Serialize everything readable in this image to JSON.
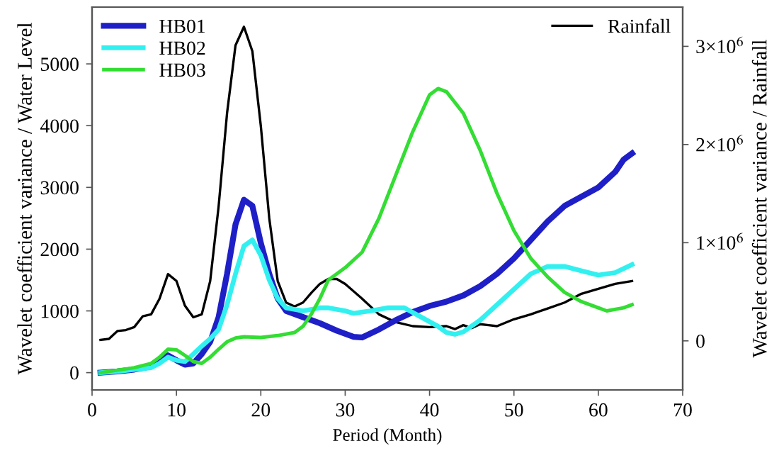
{
  "chart_data": {
    "type": "line",
    "xlabel": "Period (Month)",
    "ylabel": "Wavelet coefficient variance / Water Level",
    "y2label": "Wavelet coefficient variance / Rainfall",
    "xlim": [
      0,
      70
    ],
    "xticks": [
      0,
      10,
      20,
      30,
      40,
      50,
      60,
      70
    ],
    "ylim": [
      -280,
      5920
    ],
    "yticks": [
      0,
      1000,
      2000,
      3000,
      4000,
      5000
    ],
    "y2lim": [
      -500000,
      3400000
    ],
    "y2ticks": [
      0,
      {
        "value": 1000000,
        "label": "1×10$^{6}$"
      },
      {
        "value": 2000000,
        "label": "2×10$^{6}$"
      },
      {
        "value": 3000000,
        "label": "3×10$^{6}$"
      }
    ],
    "legend": "top left",
    "grid": false,
    "marker": "none",
    "line_style": "solid",
    "series": [
      {
        "name": "HB01",
        "color": "#1f1fc8",
        "x": [
          1,
          3,
          5,
          7,
          8,
          9,
          10,
          11,
          12,
          13,
          14,
          15,
          16,
          17,
          18,
          19,
          20,
          21,
          22,
          23,
          25,
          27,
          29,
          31,
          32,
          34,
          36,
          38,
          40,
          42,
          44,
          46,
          48,
          50,
          52,
          54,
          56,
          58,
          60,
          62,
          63,
          64
        ],
        "values": [
          0,
          20,
          50,
          100,
          180,
          280,
          200,
          130,
          150,
          300,
          500,
          900,
          1600,
          2400,
          2800,
          2700,
          2100,
          1600,
          1200,
          1000,
          900,
          800,
          680,
          580,
          570,
          700,
          850,
          980,
          1080,
          1150,
          1250,
          1400,
          1600,
          1850,
          2150,
          2450,
          2700,
          2850,
          3000,
          3250,
          3450,
          3550
        ]
      },
      {
        "name": "HB02",
        "color": "#33f0f0",
        "x": [
          1,
          3,
          5,
          7,
          8,
          9,
          10,
          11,
          12,
          13,
          14,
          15,
          16,
          17,
          18,
          19,
          20,
          21,
          22,
          23,
          25,
          27,
          28,
          30,
          31,
          33,
          35,
          37,
          39,
          41,
          42,
          43,
          44,
          46,
          48,
          50,
          52,
          54,
          56,
          58,
          60,
          62,
          64
        ],
        "values": [
          0,
          20,
          50,
          80,
          150,
          250,
          200,
          180,
          300,
          430,
          550,
          700,
          1100,
          1600,
          2050,
          2150,
          1900,
          1500,
          1200,
          1050,
          1000,
          1050,
          1050,
          1000,
          960,
          1000,
          1050,
          1050,
          900,
          750,
          650,
          620,
          660,
          850,
          1100,
          1350,
          1600,
          1720,
          1720,
          1650,
          1580,
          1620,
          1750
        ]
      },
      {
        "name": "HB03",
        "color": "#33dd33",
        "x": [
          1,
          3,
          5,
          7,
          8,
          9,
          10,
          11,
          12,
          13,
          14,
          15,
          16,
          17,
          18,
          20,
          22,
          24,
          25,
          26,
          27,
          28,
          30,
          32,
          34,
          36,
          38,
          40,
          41,
          42,
          44,
          46,
          48,
          50,
          52,
          54,
          56,
          58,
          60,
          61,
          63,
          64
        ],
        "values": [
          0,
          40,
          80,
          150,
          250,
          380,
          370,
          280,
          180,
          150,
          250,
          380,
          500,
          560,
          580,
          570,
          600,
          650,
          750,
          950,
          1200,
          1500,
          1700,
          1950,
          2500,
          3200,
          3900,
          4500,
          4600,
          4550,
          4200,
          3600,
          2900,
          2300,
          1850,
          1550,
          1300,
          1150,
          1050,
          1000,
          1050,
          1100
        ]
      },
      {
        "name": "Rainfall",
        "color": "#000000",
        "axis": "y2",
        "x": [
          1,
          2,
          3,
          4,
          5,
          6,
          7,
          8,
          9,
          10,
          11,
          12,
          13,
          14,
          15,
          16,
          17,
          18,
          19,
          20,
          21,
          22,
          23,
          24,
          25,
          26,
          27,
          28,
          29,
          30,
          32,
          34,
          36,
          38,
          40,
          42,
          43,
          44,
          45,
          46,
          47,
          48,
          50,
          52,
          54,
          56,
          58,
          60,
          62,
          64
        ],
        "values": [
          10000,
          20000,
          100000,
          110000,
          140000,
          250000,
          270000,
          430000,
          680000,
          610000,
          360000,
          240000,
          270000,
          610000,
          1370000,
          2320000,
          3010000,
          3200000,
          2950000,
          2190000,
          1250000,
          610000,
          390000,
          350000,
          390000,
          490000,
          580000,
          630000,
          630000,
          580000,
          430000,
          270000,
          190000,
          150000,
          140000,
          150000,
          120000,
          160000,
          130000,
          170000,
          160000,
          150000,
          220000,
          270000,
          330000,
          390000,
          480000,
          530000,
          580000,
          610000
        ]
      }
    ]
  }
}
